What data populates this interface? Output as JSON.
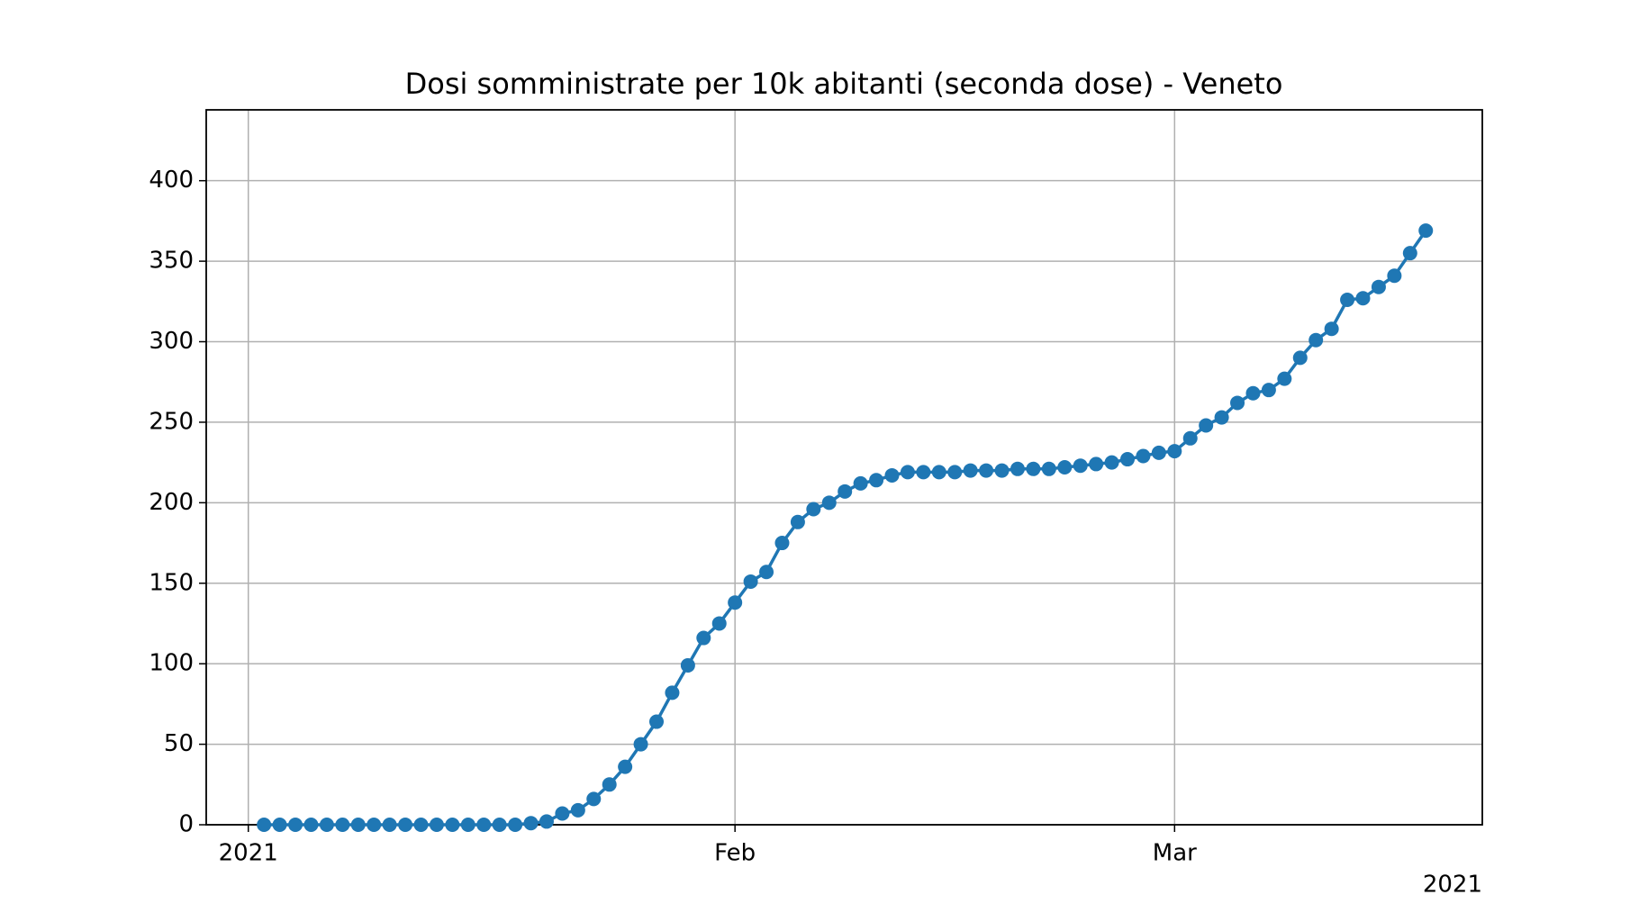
{
  "chart_data": {
    "type": "line",
    "title": "Dosi somministrate per 10k abitanti (seconda dose) - Veneto",
    "x": [
      "2021-01-02",
      "2021-01-03",
      "2021-01-04",
      "2021-01-05",
      "2021-01-06",
      "2021-01-07",
      "2021-01-08",
      "2021-01-09",
      "2021-01-10",
      "2021-01-11",
      "2021-01-12",
      "2021-01-13",
      "2021-01-14",
      "2021-01-15",
      "2021-01-16",
      "2021-01-17",
      "2021-01-18",
      "2021-01-19",
      "2021-01-20",
      "2021-01-21",
      "2021-01-22",
      "2021-01-23",
      "2021-01-24",
      "2021-01-25",
      "2021-01-26",
      "2021-01-27",
      "2021-01-28",
      "2021-01-29",
      "2021-01-30",
      "2021-01-31",
      "2021-02-01",
      "2021-02-02",
      "2021-02-03",
      "2021-02-04",
      "2021-02-05",
      "2021-02-06",
      "2021-02-07",
      "2021-02-08",
      "2021-02-09",
      "2021-02-10",
      "2021-02-11",
      "2021-02-12",
      "2021-02-13",
      "2021-02-14",
      "2021-02-15",
      "2021-02-16",
      "2021-02-17",
      "2021-02-18",
      "2021-02-19",
      "2021-02-20",
      "2021-02-21",
      "2021-02-22",
      "2021-02-23",
      "2021-02-24",
      "2021-02-25",
      "2021-02-26",
      "2021-02-27",
      "2021-02-28",
      "2021-03-01",
      "2021-03-02",
      "2021-03-03",
      "2021-03-04",
      "2021-03-05",
      "2021-03-06",
      "2021-03-07",
      "2021-03-08",
      "2021-03-09",
      "2021-03-10",
      "2021-03-11",
      "2021-03-12",
      "2021-03-13",
      "2021-03-14",
      "2021-03-15",
      "2021-03-16",
      "2021-03-17"
    ],
    "series": [
      {
        "color": "#1f77b4",
        "values": [
          0,
          0,
          0,
          0,
          0,
          0,
          0,
          0,
          0,
          0,
          0,
          0,
          0,
          0,
          0,
          0,
          0,
          1,
          2,
          7,
          9,
          16,
          25,
          36,
          50,
          64,
          82,
          99,
          116,
          125,
          138,
          151,
          157,
          175,
          188,
          196,
          200,
          207,
          212,
          214,
          217,
          219,
          219,
          219,
          219,
          220,
          220,
          220,
          221,
          221,
          221,
          222,
          223,
          224,
          225,
          227,
          229,
          231,
          232,
          240,
          248,
          253,
          262,
          268,
          270,
          277,
          290,
          301,
          308,
          326,
          327,
          334,
          341,
          355,
          369
        ]
      }
    ],
    "xlim": [
      "2020-12-29T07:40:00Z",
      "2021-03-20T14:24:00Z"
    ],
    "xticks": [
      {
        "value": "2021-01-01",
        "label": "2021"
      },
      {
        "value": "2021-02-01",
        "label": "Feb"
      },
      {
        "value": "2021-03-01",
        "label": "Mar"
      }
    ],
    "x_offset_label": "2021",
    "ylim": [
      0,
      444
    ],
    "yticks": [
      0,
      50,
      100,
      150,
      200,
      250,
      300,
      350,
      400
    ],
    "grid": true
  }
}
